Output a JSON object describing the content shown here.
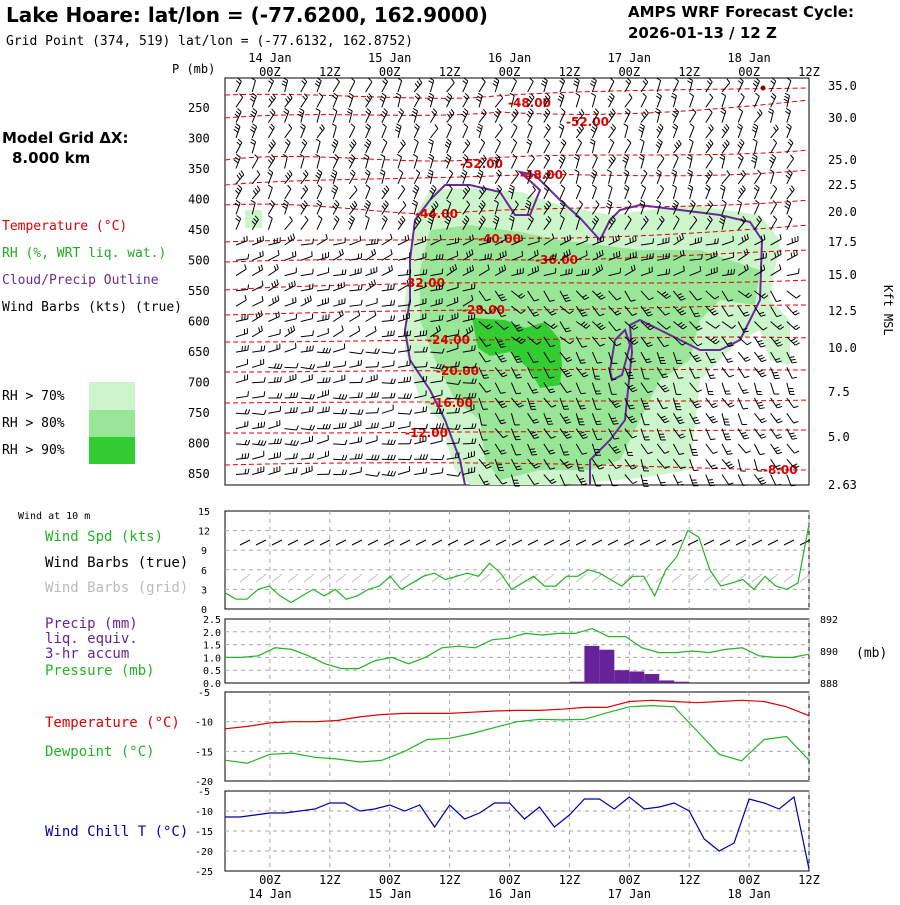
{
  "header": {
    "title": "Lake Hoare:  lat/lon = (-77.6200, 162.9000)",
    "subtitle": "Grid Point (374, 519) lat/lon = (-77.6132, 162.8752)",
    "cycle_line1": "AMPS WRF Forecast Cycle:",
    "cycle_line2": "2026-01-13 / 12  Z"
  },
  "model_grid": {
    "label": "Model Grid ΔX:",
    "value": "8.000 km"
  },
  "time_axis": {
    "hour_labels": [
      "00Z",
      "12Z",
      "00Z",
      "12Z",
      "00Z",
      "12Z",
      "00Z",
      "12Z",
      "00Z",
      "12Z"
    ],
    "day_labels": [
      "14 Jan",
      "15 Jan",
      "16 Jan",
      "17 Jan",
      "18 Jan"
    ]
  },
  "legend": {
    "temperature": "Temperature (°C)",
    "rh": "RH (%, WRT liq. wat.)",
    "cloud": "Cloud/Precip Outline",
    "wind": "Wind Barbs (kts) (true)",
    "rh70": "RH > 70%",
    "rh80": "RH > 80%",
    "rh90": "RH > 90%"
  },
  "colors": {
    "temperature": "#dd0000",
    "rh70": "#ccf5cc",
    "rh80": "#99e699",
    "rh90": "#33cc33",
    "cloud": "#6a2a9a",
    "wind_green": "#22b422",
    "precip": "#66229a",
    "windchill": "#0000aa"
  },
  "chart_data": [
    {
      "type": "heatmap",
      "title": "Vertical cross-section",
      "ylabel": "P (mb)",
      "pressure_ticks": [
        "250",
        "300",
        "350",
        "400",
        "450",
        "500",
        "550",
        "600",
        "650",
        "700",
        "750",
        "800",
        "850"
      ],
      "right_axis_label": "Kft MSL",
      "height_ticks": [
        "35.0",
        "30.0",
        "25.0",
        "22.5",
        "20.0",
        "17.5",
        "15.0",
        "12.5",
        "10.0",
        "7.5",
        "5.0",
        "2.63"
      ],
      "temperature_labels": [
        "-48.00",
        "-52.00",
        "-52.00",
        "-48.00",
        "-44.00",
        "-40.00",
        "-36.00",
        "-32.00",
        "-28.00",
        "-24.00",
        "-20.00",
        "-16.00",
        "-12.00",
        "-8.00"
      ]
    },
    {
      "type": "line",
      "title": "Wind at 10 m",
      "labels": {
        "speed": "Wind Spd (kts)",
        "barbs_true": "Wind Barbs (true)",
        "barbs_grid": "Wind Barbs (grid)"
      },
      "yticks": [
        "15",
        "12",
        "9",
        "6",
        "3",
        "0"
      ],
      "ylim": [
        0,
        15
      ],
      "series": [
        {
          "name": "Wind Spd (kts)",
          "values": [
            2.5,
            1.5,
            1.5,
            3,
            3.5,
            2,
            1,
            2,
            3,
            2,
            3,
            1.5,
            2,
            3,
            3.5,
            5,
            3,
            4,
            5,
            5.5,
            4.5,
            5,
            5.5,
            5,
            7,
            5.5,
            3,
            4,
            5,
            3.5,
            3.5,
            5,
            5,
            6,
            5.5,
            4.5,
            3.5,
            5,
            5,
            2,
            6,
            8,
            12,
            11,
            6,
            3.5,
            4,
            4.5,
            3,
            5,
            3.5,
            3,
            4,
            13
          ]
        }
      ]
    },
    {
      "type": "bar",
      "title": "Precip / Pressure",
      "labels": {
        "precip1": "Precip (mm)",
        "precip2": "liq. equiv.",
        "precip3": "3-hr accum",
        "pressure": "Pressure (mb)"
      },
      "left_ticks": [
        "2.5",
        "2.0",
        "1.5",
        "1.0",
        "0.5",
        "0.0"
      ],
      "right_ticks": [
        "892",
        "890",
        "888"
      ],
      "right_unit": "(mb)",
      "precip_ylim": [
        0,
        2.5
      ],
      "pressure_ylim": [
        888,
        892
      ],
      "precip_bars": [
        {
          "hour": 69,
          "value": 0.05
        },
        {
          "hour": 72,
          "value": 1.45
        },
        {
          "hour": 75,
          "value": 1.3
        },
        {
          "hour": 78,
          "value": 0.5
        },
        {
          "hour": 81,
          "value": 0.45
        },
        {
          "hour": 84,
          "value": 0.35
        },
        {
          "hour": 87,
          "value": 0.1
        },
        {
          "hour": 90,
          "value": 0.05
        }
      ],
      "pressure_values": [
        889.6,
        889.6,
        889.7,
        890.2,
        890.1,
        889.7,
        889.2,
        888.9,
        888.9,
        889.4,
        889.6,
        889.2,
        889.6,
        890.2,
        890.3,
        890.2,
        890.7,
        890.8,
        891.1,
        891.0,
        891.1,
        891.1,
        891.4,
        890.9,
        890.9,
        890.2,
        889.9,
        889.9,
        890.0,
        889.9,
        890.1,
        890.2,
        889.7,
        889.6,
        889.6,
        889.8
      ]
    },
    {
      "type": "line",
      "title": "Temperature / Dewpoint",
      "labels": {
        "temperature": "Temperature (°C)",
        "dewpoint": "Dewpoint (°C)"
      },
      "yticks": [
        "-5",
        "-10",
        "-15",
        "-20"
      ],
      "ylim": [
        -20,
        -5
      ],
      "series": [
        {
          "name": "Temperature (°C)",
          "values": [
            -11.2,
            -10.8,
            -10.2,
            -10.0,
            -10.0,
            -9.8,
            -9.2,
            -8.8,
            -8.6,
            -8.6,
            -8.6,
            -8.4,
            -8.2,
            -8.1,
            -8.1,
            -7.9,
            -7.6,
            -7.6,
            -6.6,
            -6.4,
            -6.6,
            -6.8,
            -6.6,
            -6.4,
            -6.6,
            -7.5,
            -9.0
          ]
        },
        {
          "name": "Dewpoint (°C)",
          "values": [
            -16.5,
            -17.0,
            -15.5,
            -15.3,
            -16.0,
            -16.3,
            -16.8,
            -16.5,
            -15.0,
            -13.0,
            -12.8,
            -12.0,
            -11.0,
            -10.0,
            -9.6,
            -9.7,
            -9.6,
            -8.5,
            -7.5,
            -7.3,
            -7.5,
            -11.5,
            -15.5,
            -16.6,
            -13.0,
            -12.5,
            -16.5
          ]
        }
      ]
    },
    {
      "type": "line",
      "title": "Wind Chill",
      "labels": {
        "windchill": "Wind Chill T (°C)"
      },
      "yticks": [
        "-5",
        "-10",
        "-15",
        "-20",
        "-25"
      ],
      "ylim": [
        -25,
        -5
      ],
      "series": [
        {
          "name": "Wind Chill T (°C)",
          "values": [
            -11.5,
            -11.5,
            -11,
            -10.5,
            -10.5,
            -10,
            -9.5,
            -8,
            -8,
            -10,
            -9.5,
            -8.5,
            -10,
            -8.5,
            -14,
            -8.5,
            -12,
            -10.5,
            -8,
            -8,
            -12,
            -9,
            -14,
            -11,
            -7,
            -7,
            -9.5,
            -6.5,
            -9.5,
            -9,
            -8,
            -10,
            -17,
            -20,
            -18,
            -7,
            -8,
            -9.5,
            -6.5,
            -24.5
          ]
        }
      ]
    }
  ]
}
